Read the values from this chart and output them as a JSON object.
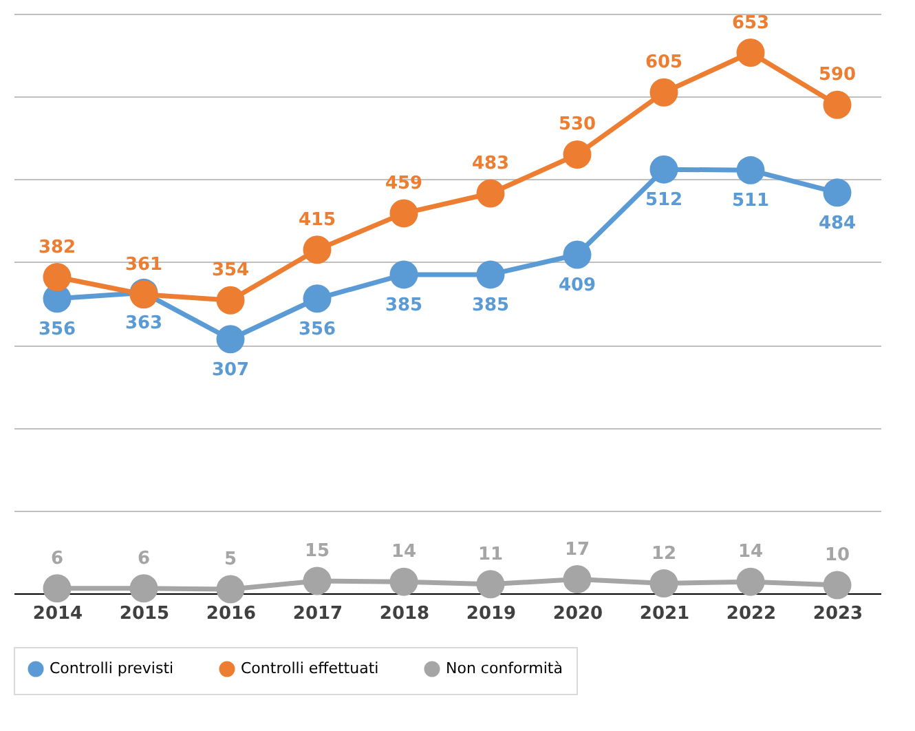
{
  "chart_data": {
    "type": "line",
    "categories": [
      "2014",
      "2015",
      "2016",
      "2017",
      "2018",
      "2019",
      "2020",
      "2021",
      "2022",
      "2023"
    ],
    "series": [
      {
        "name": "Controlli previsti",
        "color": "#5b9bd5",
        "values": [
          356,
          363,
          307,
          356,
          385,
          385,
          409,
          512,
          511,
          484
        ]
      },
      {
        "name": "Controlli effettuati",
        "color": "#ed7d31",
        "values": [
          382,
          361,
          354,
          415,
          459,
          483,
          530,
          605,
          653,
          590
        ]
      },
      {
        "name": "Non conformità",
        "color": "#a5a5a5",
        "values": [
          6,
          6,
          5,
          15,
          14,
          11,
          17,
          12,
          14,
          10
        ]
      }
    ],
    "ylim": [
      0,
      700
    ],
    "yticks": [
      {
        "value": 0,
        "label": null
      },
      {
        "value": 100,
        "label": null
      },
      {
        "value": 200,
        "label": null
      },
      {
        "value": 300,
        "label": null
      },
      {
        "value": 400,
        "label": null
      },
      {
        "value": 500,
        "label": null
      },
      {
        "value": 600,
        "label": null
      },
      {
        "value": 700,
        "label": null
      }
    ],
    "tick_labels": "x",
    "grid": "y",
    "legend": "bottom",
    "marker": "circle",
    "line_style": "solid",
    "data_labels": true
  }
}
